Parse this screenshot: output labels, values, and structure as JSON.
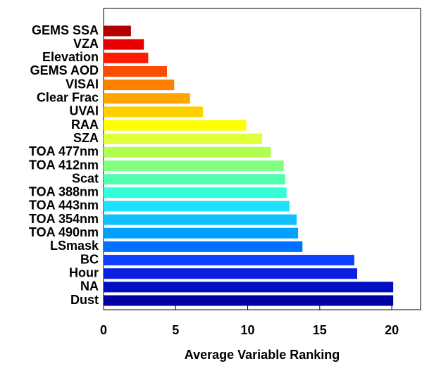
{
  "chart_data": {
    "type": "barh",
    "xlabel": "Average Variable Ranking",
    "categories": [
      "GEMS SSA",
      "VZA",
      "Elevation",
      "GEMS AOD",
      "VISAI",
      "Clear Frac",
      "UVAI",
      "RAA",
      "SZA",
      "TOA 477nm",
      "TOA 412nm",
      "Scat",
      "TOA 388nm",
      "TOA 443nm",
      "TOA 354nm",
      "TOA 490nm",
      "LSmask",
      "BC",
      "Hour",
      "NA",
      "Dust"
    ],
    "values": [
      1.9,
      2.8,
      3.1,
      4.4,
      4.9,
      6.0,
      6.9,
      9.9,
      11.0,
      11.6,
      12.5,
      12.6,
      12.7,
      12.9,
      13.4,
      13.5,
      13.8,
      17.4,
      17.6,
      20.1,
      20.1
    ],
    "colors": [
      "#b30000",
      "#e60000",
      "#ff1a00",
      "#ff4d00",
      "#ff7f00",
      "#ffa500",
      "#ffd000",
      "#ffff00",
      "#e0ff3a",
      "#b0ff50",
      "#80ff80",
      "#50ffb0",
      "#30ffd8",
      "#20e0ff",
      "#10c0ff",
      "#00a0ff",
      "#0070ff",
      "#1040ff",
      "#0a20e0",
      "#0010c0",
      "#0000a0"
    ],
    "xlim": [
      0,
      22
    ],
    "xticks": [
      0,
      5,
      10,
      15,
      20
    ]
  }
}
